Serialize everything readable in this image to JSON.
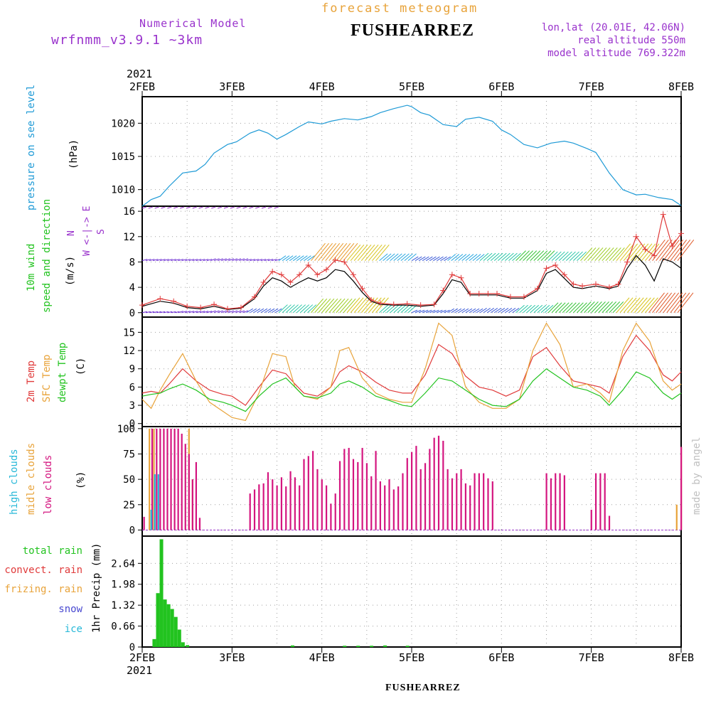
{
  "header": {
    "model_label": "Numerical Model",
    "model_name": "wrfnmm_v3.9.1   ~3km",
    "chart_title": "forecast meteogram",
    "station": "FUSHEARREZ",
    "lonlat": "lon,lat (20.01E, 42.06N)",
    "real_altitude": "real altitude 550m",
    "model_altitude": "model altitude  769.322m"
  },
  "footer": {
    "station": "FUSHEARREZ",
    "credit": "made by angel"
  },
  "colors": {
    "purple": "#9932cc",
    "orange": "#e8a33a",
    "pressure": "#1e9ad6",
    "green": "#22c31f",
    "red": "#e03a3a",
    "magenta": "#d4157f",
    "cyan": "#27b8d8",
    "blue": "#4848d0",
    "grid": "#a0a0a0",
    "credit": "#c0c0c0"
  },
  "chart_data": [
    {
      "type": "line",
      "panel": "pressure",
      "ylabel": [
        "pressure on see level",
        "(hPa)"
      ],
      "year": "2021",
      "x_ticks": [
        "2FEB",
        "3FEB",
        "4FEB",
        "5FEB",
        "6FEB",
        "7FEB",
        "8FEB"
      ],
      "y_ticks": [
        1010,
        1015,
        1020
      ],
      "ylim": [
        1007.5,
        1024
      ],
      "x": [
        0,
        0.1,
        0.2,
        0.3,
        0.45,
        0.6,
        0.7,
        0.8,
        0.95,
        1.05,
        1.2,
        1.3,
        1.4,
        1.5,
        1.6,
        1.75,
        1.85,
        2.0,
        2.1,
        2.25,
        2.4,
        2.55,
        2.65,
        2.8,
        2.95,
        3.0,
        3.1,
        3.2,
        3.35,
        3.5,
        3.6,
        3.75,
        3.9,
        4.0,
        4.1,
        4.25,
        4.4,
        4.55,
        4.7,
        4.8,
        4.95,
        5.05,
        5.2,
        5.35,
        5.5,
        5.6,
        5.75,
        5.9,
        6.0
      ],
      "series": [
        {
          "values": [
            1007.5,
            1008.5,
            1009.0,
            1010.5,
            1012.5,
            1012.8,
            1013.8,
            1015.5,
            1016.8,
            1017.2,
            1018.5,
            1019.0,
            1018.5,
            1017.6,
            1018.3,
            1019.5,
            1020.2,
            1019.9,
            1020.3,
            1020.7,
            1020.5,
            1021.0,
            1021.6,
            1022.2,
            1022.7,
            1022.5,
            1021.6,
            1021.2,
            1019.8,
            1019.5,
            1020.6,
            1020.9,
            1020.3,
            1019.0,
            1018.3,
            1016.8,
            1016.3,
            1017.0,
            1017.3,
            1017.0,
            1016.2,
            1015.6,
            1012.5,
            1010.0,
            1009.2,
            1009.3,
            1008.8,
            1008.5,
            1007.6
          ]
        }
      ]
    },
    {
      "type": "line",
      "panel": "wind",
      "ylabel": [
        "10m wind",
        "speed and direction",
        "(m/s)"
      ],
      "compass": [
        "N",
        "W <-|-> E",
        "S"
      ],
      "y_ticks": [
        0,
        4,
        8,
        12,
        16
      ],
      "ylim": [
        -0.7,
        16.8
      ],
      "x": [
        0,
        0.2,
        0.35,
        0.5,
        0.65,
        0.8,
        0.95,
        1.1,
        1.25,
        1.35,
        1.45,
        1.55,
        1.65,
        1.75,
        1.85,
        1.95,
        2.05,
        2.15,
        2.25,
        2.35,
        2.45,
        2.55,
        2.65,
        2.8,
        2.95,
        3.1,
        3.25,
        3.35,
        3.45,
        3.55,
        3.65,
        3.75,
        3.85,
        3.95,
        4.1,
        4.25,
        4.4,
        4.5,
        4.6,
        4.7,
        4.8,
        4.9,
        5.05,
        5.2,
        5.3,
        5.4,
        5.5,
        5.6,
        5.7,
        5.8,
        5.9,
        6.0
      ],
      "series": [
        {
          "name": "red",
          "values": [
            1.2,
            2.2,
            1.8,
            1.0,
            0.8,
            1.3,
            0.6,
            0.8,
            2.5,
            4.8,
            6.5,
            6.0,
            4.8,
            6.0,
            7.5,
            6.0,
            6.8,
            8.3,
            8.0,
            6.0,
            3.8,
            2.0,
            1.5,
            1.3,
            1.4,
            1.2,
            1.3,
            3.5,
            6.0,
            5.5,
            3.0,
            3.0,
            3.0,
            3.0,
            2.5,
            2.5,
            3.8,
            7.0,
            7.5,
            6.0,
            4.5,
            4.2,
            4.5,
            4.0,
            4.5,
            8.0,
            12.0,
            10.0,
            9.0,
            15.5,
            10.5,
            12.5
          ]
        },
        {
          "name": "black",
          "values": [
            1.0,
            1.8,
            1.5,
            0.8,
            0.6,
            1.0,
            0.5,
            0.7,
            2.2,
            4.2,
            5.5,
            5.0,
            4.0,
            4.8,
            5.5,
            5.0,
            5.5,
            6.8,
            6.5,
            5.0,
            3.2,
            1.8,
            1.3,
            1.2,
            1.2,
            1.0,
            1.2,
            3.0,
            5.2,
            4.8,
            2.8,
            2.8,
            2.8,
            2.8,
            2.3,
            2.3,
            3.5,
            6.2,
            6.8,
            5.4,
            4.0,
            3.8,
            4.2,
            3.8,
            4.2,
            7.0,
            9.0,
            7.5,
            5.0,
            8.5,
            8.0,
            7.0
          ]
        }
      ]
    },
    {
      "type": "line",
      "panel": "temperature",
      "ylabel": [
        "2m Temp",
        "SFC Temp",
        "dewpt Temp",
        "(C)"
      ],
      "y_ticks": [
        0,
        3,
        6,
        9,
        12,
        15
      ],
      "ylim": [
        -0.5,
        17.5
      ],
      "x": [
        0,
        0.1,
        0.2,
        0.3,
        0.45,
        0.6,
        0.75,
        0.9,
        1.0,
        1.15,
        1.3,
        1.45,
        1.6,
        1.7,
        1.8,
        1.95,
        2.1,
        2.2,
        2.3,
        2.45,
        2.6,
        2.75,
        2.9,
        3.0,
        3.15,
        3.3,
        3.45,
        3.6,
        3.75,
        3.9,
        4.05,
        4.2,
        4.35,
        4.5,
        4.65,
        4.8,
        4.95,
        5.1,
        5.2,
        5.35,
        5.5,
        5.65,
        5.8,
        5.9,
        6.0
      ],
      "series": [
        {
          "name": "2m Temp",
          "values": [
            5.0,
            5.3,
            5.0,
            6.5,
            9.0,
            7.0,
            5.5,
            4.8,
            4.5,
            3.0,
            6.0,
            8.8,
            8.2,
            6.5,
            5.0,
            4.5,
            6.0,
            8.5,
            9.5,
            8.5,
            6.8,
            5.5,
            5.0,
            5.0,
            8.0,
            13.0,
            11.5,
            7.8,
            6.0,
            5.5,
            4.5,
            5.5,
            11.0,
            12.5,
            9.5,
            7.0,
            6.5,
            6.0,
            5.0,
            11.0,
            14.5,
            12.0,
            8.0,
            7.0,
            8.5
          ]
        },
        {
          "name": "SFC Temp",
          "values": [
            4.0,
            2.5,
            5.5,
            8.0,
            11.5,
            7.0,
            3.5,
            2.0,
            1.0,
            0.5,
            5.0,
            11.5,
            11.0,
            6.0,
            4.5,
            4.0,
            6.0,
            12.0,
            12.5,
            7.5,
            5.0,
            4.0,
            3.5,
            3.5,
            9.0,
            16.5,
            14.5,
            6.0,
            3.5,
            2.5,
            2.5,
            4.0,
            12.0,
            16.5,
            13.0,
            6.0,
            6.5,
            5.0,
            3.5,
            12.0,
            16.5,
            13.5,
            7.0,
            5.5,
            6.5
          ]
        },
        {
          "name": "dewpt Temp",
          "values": [
            4.5,
            4.8,
            5.0,
            5.7,
            6.5,
            5.5,
            4.0,
            3.5,
            3.0,
            2.0,
            4.5,
            6.5,
            7.5,
            6.0,
            4.5,
            4.2,
            5.0,
            6.5,
            7.0,
            6.0,
            4.5,
            3.8,
            3.0,
            2.8,
            5.0,
            7.5,
            7.0,
            5.5,
            4.0,
            3.0,
            2.8,
            4.0,
            7.0,
            9.0,
            7.5,
            6.0,
            5.5,
            4.5,
            3.0,
            5.5,
            8.5,
            7.5,
            5.0,
            4.0,
            5.0
          ]
        }
      ]
    },
    {
      "type": "bar",
      "panel": "clouds",
      "ylabel": [
        "high clouds",
        "midle clouds",
        "low clouds",
        "(%)"
      ],
      "y_ticks": [
        0,
        25,
        50,
        75,
        100
      ],
      "ylim": [
        -6,
        102
      ],
      "series": [
        {
          "name": "low clouds",
          "values": [
            [
              0.02,
              13
            ],
            [
              0.11,
              100
            ],
            [
              0.16,
              100
            ],
            [
              0.2,
              100
            ],
            [
              0.24,
              100
            ],
            [
              0.28,
              100
            ],
            [
              0.32,
              100
            ],
            [
              0.36,
              100
            ],
            [
              0.4,
              100
            ],
            [
              0.44,
              95
            ],
            [
              0.48,
              85
            ],
            [
              0.52,
              75
            ],
            [
              0.56,
              50
            ],
            [
              0.6,
              67
            ],
            [
              0.64,
              12
            ],
            [
              1.2,
              36
            ],
            [
              1.25,
              40
            ],
            [
              1.3,
              45
            ],
            [
              1.35,
              46
            ],
            [
              1.4,
              57
            ],
            [
              1.45,
              50
            ],
            [
              1.5,
              44
            ],
            [
              1.55,
              52
            ],
            [
              1.6,
              43
            ],
            [
              1.65,
              58
            ],
            [
              1.7,
              52
            ],
            [
              1.75,
              44
            ],
            [
              1.8,
              70
            ],
            [
              1.85,
              73
            ],
            [
              1.9,
              78
            ],
            [
              1.95,
              60
            ],
            [
              2.0,
              50
            ],
            [
              2.05,
              44
            ],
            [
              2.1,
              26
            ],
            [
              2.15,
              36
            ],
            [
              2.2,
              68
            ],
            [
              2.25,
              80
            ],
            [
              2.3,
              81
            ],
            [
              2.35,
              70
            ],
            [
              2.4,
              67
            ],
            [
              2.45,
              81
            ],
            [
              2.5,
              66
            ],
            [
              2.55,
              53
            ],
            [
              2.6,
              78
            ],
            [
              2.65,
              48
            ],
            [
              2.7,
              44
            ],
            [
              2.75,
              50
            ],
            [
              2.8,
              40
            ],
            [
              2.85,
              43
            ],
            [
              2.9,
              56
            ],
            [
              2.95,
              71
            ],
            [
              3.0,
              77
            ],
            [
              3.05,
              83
            ],
            [
              3.1,
              60
            ],
            [
              3.15,
              66
            ],
            [
              3.2,
              80
            ],
            [
              3.25,
              91
            ],
            [
              3.3,
              93
            ],
            [
              3.35,
              88
            ],
            [
              3.4,
              60
            ],
            [
              3.45,
              51
            ],
            [
              3.5,
              56
            ],
            [
              3.55,
              60
            ],
            [
              3.6,
              46
            ],
            [
              3.65,
              44
            ],
            [
              3.7,
              56
            ],
            [
              3.75,
              56
            ],
            [
              3.8,
              56
            ],
            [
              3.85,
              51
            ],
            [
              3.9,
              48
            ],
            [
              4.5,
              56
            ],
            [
              4.55,
              51
            ],
            [
              4.6,
              56
            ],
            [
              4.65,
              56
            ],
            [
              4.7,
              54
            ],
            [
              5.0,
              20
            ],
            [
              5.05,
              56
            ],
            [
              5.1,
              56
            ],
            [
              5.15,
              56
            ],
            [
              5.2,
              14
            ],
            [
              6.0,
              82
            ]
          ]
        },
        {
          "name": "midle clouds",
          "values": [
            [
              0.08,
              100
            ],
            [
              0.13,
              100
            ],
            [
              0.52,
              100
            ],
            [
              0.56,
              50
            ],
            [
              5.95,
              25
            ],
            [
              6.0,
              82
            ]
          ]
        },
        {
          "name": "high clouds",
          "values": [
            [
              0.1,
              20
            ],
            [
              0.14,
              55
            ],
            [
              0.18,
              55
            ]
          ]
        }
      ]
    },
    {
      "type": "bar",
      "panel": "precipitation",
      "ylabel": [
        "total rain",
        "convect. rain",
        "frizing. rain",
        "snow",
        "ice",
        "1hr Precip (mm)"
      ],
      "y_ticks": [
        "0",
        "0.66",
        "1.32",
        "1.98",
        "2.64"
      ],
      "ylim": [
        0,
        3.5
      ],
      "x_ticks": [
        "2FEB",
        "3FEB",
        "4FEB",
        "5FEB",
        "6FEB",
        "7FEB",
        "8FEB"
      ],
      "year": "2021",
      "series": [
        {
          "name": "total rain",
          "values": [
            [
              0.13,
              0.25
            ],
            [
              0.17,
              1.7
            ],
            [
              0.21,
              3.4
            ],
            [
              0.25,
              1.5
            ],
            [
              0.29,
              1.35
            ],
            [
              0.33,
              1.2
            ],
            [
              0.37,
              0.95
            ],
            [
              0.41,
              0.55
            ],
            [
              0.45,
              0.15
            ],
            [
              0.5,
              0.06
            ],
            [
              1.67,
              0.05
            ],
            [
              2.25,
              0.04
            ],
            [
              2.4,
              0.04
            ],
            [
              2.55,
              0.04
            ],
            [
              2.7,
              0.05
            ],
            [
              2.95,
              0.04
            ]
          ]
        }
      ]
    }
  ]
}
